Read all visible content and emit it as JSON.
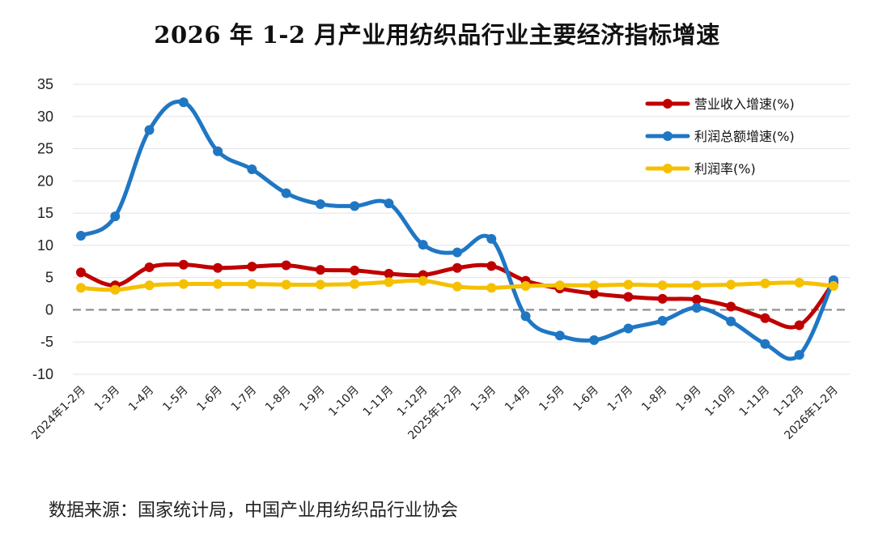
{
  "title": "2026 年 1-2 月产业用纺织品行业主要经济指标增速",
  "source": "数据来源：国家统计局，中国产业用纺织品行业协会",
  "chart_data": {
    "type": "line",
    "title": "2026 年 1-2 月产业用纺织品行业主要经济指标增速",
    "xlabel": "",
    "ylabel": "",
    "ylim": [
      -10,
      35
    ],
    "yticks": [
      -10,
      -5,
      0,
      5,
      10,
      15,
      20,
      25,
      30,
      35
    ],
    "grid": true,
    "legend_position": "top-right",
    "categories": [
      "2024年1-2月",
      "1-3月",
      "1-4月",
      "1-5月",
      "1-6月",
      "1-7月",
      "1-8月",
      "1-9月",
      "1-10月",
      "1-11月",
      "1-12月",
      "2025年1-2月",
      "1-3月",
      "1-4月",
      "1-5月",
      "1-6月",
      "1-7月",
      "1-8月",
      "1-9月",
      "1-10月",
      "1-11月",
      "1-12月",
      "2026年1-2月"
    ],
    "series": [
      {
        "name": "营业收入增速(%)",
        "color": "#c00000",
        "values": [
          5.8,
          3.8,
          6.6,
          7.0,
          6.5,
          6.7,
          6.9,
          6.2,
          6.1,
          5.6,
          5.4,
          6.5,
          6.8,
          4.5,
          3.3,
          2.5,
          2.0,
          1.7,
          1.6,
          0.5,
          -1.3,
          -2.4,
          4.2
        ]
      },
      {
        "name": "利润总额增速(%)",
        "color": "#1f77c4",
        "values": [
          11.5,
          14.5,
          27.9,
          32.2,
          24.6,
          21.8,
          18.1,
          16.4,
          16.1,
          16.5,
          10.1,
          8.9,
          11.0,
          -1.0,
          -4.0,
          -4.7,
          -2.9,
          -1.7,
          0.3,
          -1.8,
          -5.3,
          -7.0,
          4.6
        ]
      },
      {
        "name": "利润率(%)",
        "color": "#f5c000",
        "values": [
          3.4,
          3.1,
          3.8,
          4.0,
          4.0,
          4.0,
          3.9,
          3.9,
          4.0,
          4.3,
          4.5,
          3.6,
          3.4,
          3.7,
          3.8,
          3.8,
          3.9,
          3.8,
          3.8,
          3.9,
          4.1,
          4.2,
          3.7
        ]
      }
    ]
  }
}
